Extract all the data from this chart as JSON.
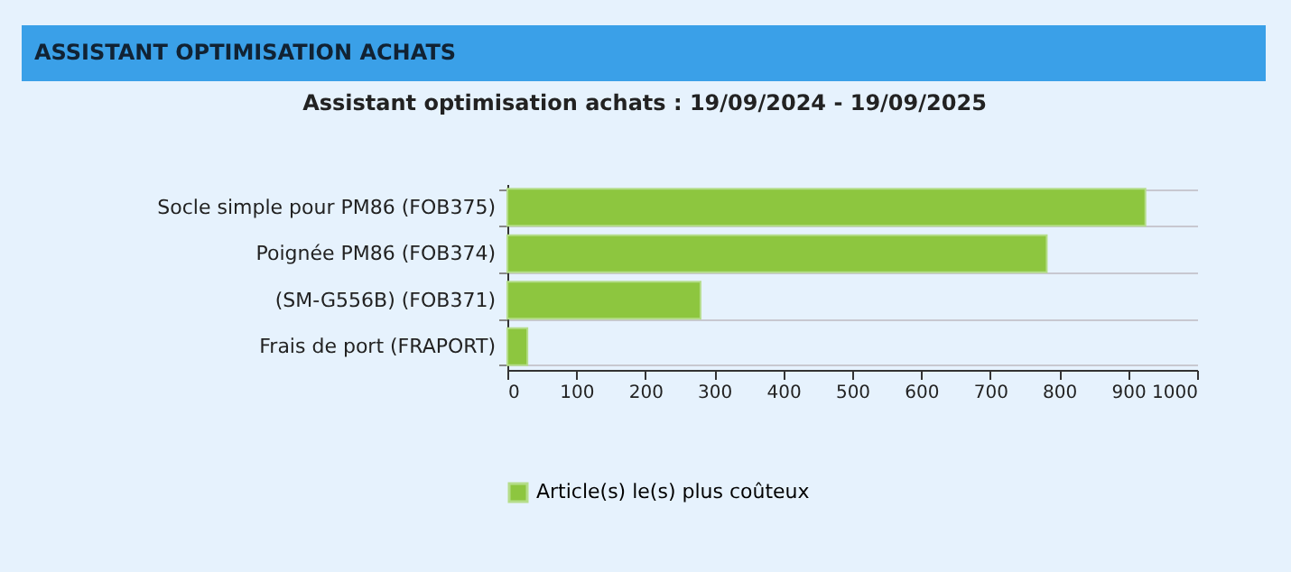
{
  "chart_data": {
    "type": "bar",
    "orientation": "horizontal",
    "title": "Assistant optimisation achats : 19/09/2024 - 19/09/2025",
    "annotations": [
      "ASSISTANT OPTIMISATION ACHATS"
    ],
    "categories": [
      "Socle simple pour PM86 (FOB375)",
      "Poignée PM86 (FOB374)",
      "(SM-G556B) (FOB371)",
      "Frais de port (FRAPORT)"
    ],
    "series": [
      {
        "name": "Article(s) le(s) plus coûteux",
        "color": "#8dc63f",
        "values": [
          925,
          782,
          280,
          29
        ]
      }
    ],
    "xlim": [
      0,
      1000
    ],
    "xticks": [
      0,
      100,
      200,
      300,
      400,
      500,
      600,
      700,
      800,
      900,
      1000
    ],
    "grid": "y",
    "legend": "bottom"
  }
}
